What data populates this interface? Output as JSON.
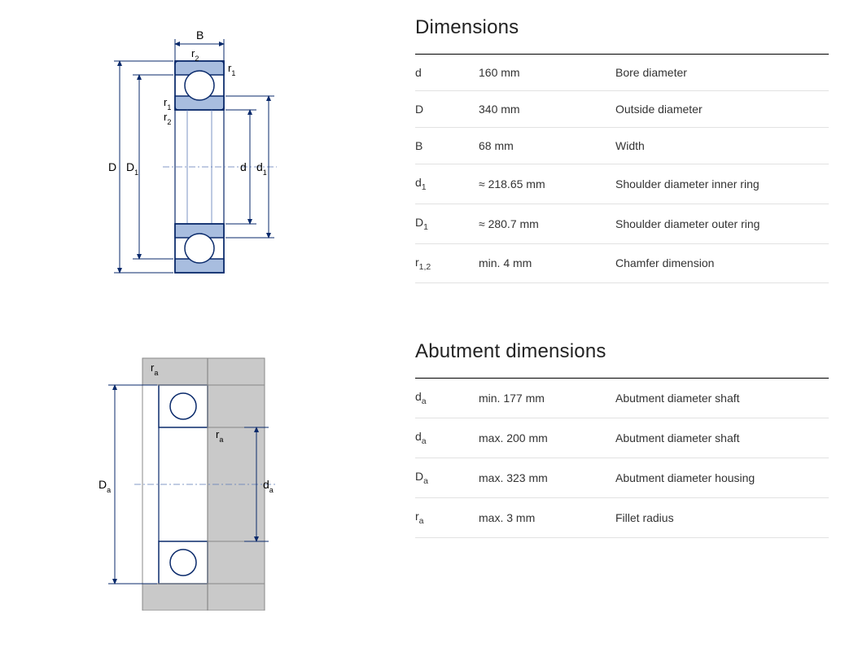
{
  "dimensions": {
    "title": "Dimensions",
    "rows": [
      {
        "symbol": "d",
        "sub": "",
        "value": "160 mm",
        "desc": "Bore diameter"
      },
      {
        "symbol": "D",
        "sub": "",
        "value": "340 mm",
        "desc": "Outside diameter"
      },
      {
        "symbol": "B",
        "sub": "",
        "value": "68 mm",
        "desc": "Width"
      },
      {
        "symbol": "d",
        "sub": "1",
        "value": "≈ 218.65 mm",
        "desc": "Shoulder diameter inner ring"
      },
      {
        "symbol": "D",
        "sub": "1",
        "value": "≈ 280.7 mm",
        "desc": "Shoulder diameter outer ring"
      },
      {
        "symbol": "r",
        "sub": "1,2",
        "value": "min. 4 mm",
        "desc": "Chamfer dimension"
      }
    ]
  },
  "abutment": {
    "title": "Abutment dimensions",
    "rows": [
      {
        "symbol": "d",
        "sub": "a",
        "value": "min. 177 mm",
        "desc": "Abutment diameter shaft"
      },
      {
        "symbol": "d",
        "sub": "a",
        "value": "max. 200 mm",
        "desc": "Abutment diameter shaft"
      },
      {
        "symbol": "D",
        "sub": "a",
        "value": "max. 323 mm",
        "desc": "Abutment diameter housing"
      },
      {
        "symbol": "r",
        "sub": "a",
        "value": "max. 3 mm",
        "desc": "Fillet radius"
      }
    ]
  },
  "diagram_colors": {
    "outline": "#0a2a6b",
    "fill_shade": "#a8bddf",
    "fill_light": "#ffffff",
    "hatch_gray": "#c9c9c9",
    "dim_line": "#0a2a6b",
    "thin_line": "#5b79b5"
  },
  "labels": {
    "D": "D",
    "D1": "D",
    "D1_sub": "1",
    "d": "d",
    "d1": "d",
    "d1_sub": "1",
    "B": "B",
    "r1": "r",
    "r1_sub": "1",
    "r2": "r",
    "r2_sub": "2",
    "Da": "D",
    "Da_sub": "a",
    "da": "d",
    "da_sub": "a",
    "ra": "r",
    "ra_sub": "a"
  }
}
